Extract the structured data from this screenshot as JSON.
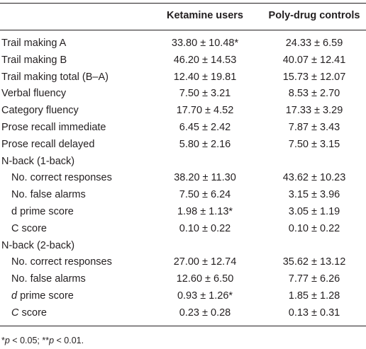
{
  "table": {
    "columns": [
      "Ketamine users",
      "Poly-drug controls"
    ],
    "rows": [
      {
        "label": "Trail making A",
        "values": [
          "33.80 ± 10.48*",
          "24.33 ± 6.59"
        ]
      },
      {
        "label": "Trail making B",
        "values": [
          "46.20 ± 14.53",
          "40.07 ± 12.41"
        ]
      },
      {
        "label": "Trail making total (B–A)",
        "values": [
          "12.40 ± 19.81",
          "15.73 ± 12.07"
        ]
      },
      {
        "label": "Verbal fluency",
        "values": [
          "7.50 ± 3.21",
          "8.53 ± 2.70"
        ]
      },
      {
        "label": "Category fluency",
        "values": [
          "17.70 ± 4.52",
          "17.33 ± 3.29"
        ]
      },
      {
        "label": "Prose recall immediate",
        "values": [
          "6.45 ± 2.42",
          "7.87 ± 3.43"
        ]
      },
      {
        "label": "Prose recall delayed",
        "values": [
          "5.80 ± 2.16",
          "7.50 ± 3.15"
        ]
      },
      {
        "label": "N-back (1-back)"
      },
      {
        "label": "No. correct responses",
        "indent": true,
        "values": [
          "38.20 ± 11.30",
          "43.62 ± 10.23"
        ]
      },
      {
        "label": "No. false alarms",
        "indent": true,
        "values": [
          "7.50 ± 6.24",
          "3.15 ± 3.96"
        ]
      },
      {
        "label": "d prime score",
        "indent": true,
        "values": [
          "1.98 ± 1.13*",
          "3.05 ± 1.19"
        ]
      },
      {
        "label": "C score",
        "indent": true,
        "values": [
          "0.10 ± 0.22",
          "0.10 ± 0.22"
        ]
      },
      {
        "label": "N-back (2-back)"
      },
      {
        "label": "No. correct responses",
        "indent": true,
        "values": [
          "27.00 ± 12.74",
          "35.62 ± 13.12"
        ]
      },
      {
        "label": "No. false alarms",
        "indent": true,
        "values": [
          "12.60 ± 6.50",
          "7.77 ± 6.26"
        ]
      },
      {
        "label_parts": [
          {
            "text": "d",
            "italic": true
          },
          {
            "text": " prime score"
          }
        ],
        "indent": true,
        "values": [
          "0.93 ± 1.26*",
          "1.85 ± 1.28"
        ]
      },
      {
        "label_parts": [
          {
            "text": "C",
            "italic": true
          },
          {
            "text": " score"
          }
        ],
        "indent": true,
        "values": [
          "0.23 ± 0.28",
          "0.13 ± 0.31"
        ]
      }
    ],
    "footnote": [
      {
        "text": "*"
      },
      {
        "text": "p",
        "italic": true
      },
      {
        "text": " < 0.05; **"
      },
      {
        "text": "p",
        "italic": true
      },
      {
        "text": " < 0.01."
      }
    ]
  }
}
